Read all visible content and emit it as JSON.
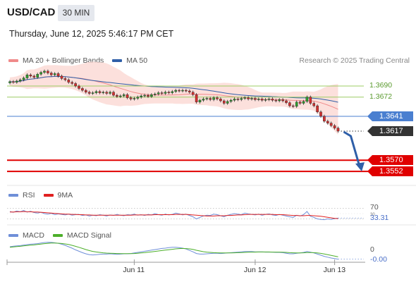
{
  "header": {
    "symbol": "USD/CAD",
    "timeframe": "30 MIN",
    "datetime": "Thursday, June 12, 2025 5:46:17 PM CET",
    "credit": "Research © 2025 Trading Central"
  },
  "legend_main": [
    {
      "label": "MA 20 + Bollinger Bands",
      "color": "#f08a8a"
    },
    {
      "label": "MA 50",
      "color": "#2f5fa8"
    }
  ],
  "legend_rsi": [
    {
      "label": "RSI",
      "color": "#6f8fd8"
    },
    {
      "label": "9MA",
      "color": "#e02020"
    }
  ],
  "legend_macd": [
    {
      "label": "MACD",
      "color": "#6f8fd8"
    },
    {
      "label": "MACD Signal",
      "color": "#4caf2a"
    }
  ],
  "colors": {
    "resistance": "#9ccc65",
    "support": "#e00000",
    "current_line": "#4a7fd0",
    "last_price_tag": "#333333",
    "arrow": "#2f5fa8",
    "bollinger_fill": "#fbd5d0",
    "candle_up": "#2e9e2e",
    "candle_down": "#d32f2f"
  },
  "chart_data": [
    {
      "type": "candlestick",
      "title": "USD/CAD 30 MIN",
      "ylim": [
        1.3535,
        1.3715
      ],
      "x_ticks": [
        {
          "label": "Jun 11",
          "index": 36
        },
        {
          "label": "Jun 12",
          "index": 71
        },
        {
          "label": "Jun 13",
          "index": 94
        }
      ],
      "levels": [
        {
          "value": 1.369,
          "label": "1.3690",
          "kind": "resistance"
        },
        {
          "value": 1.3672,
          "label": "1.3672",
          "kind": "resistance"
        },
        {
          "value": 1.3641,
          "label": "1.3641",
          "kind": "pivot"
        },
        {
          "value": 1.357,
          "label": "1.3570",
          "kind": "support"
        },
        {
          "value": 1.3552,
          "label": "1.3552",
          "kind": "support"
        }
      ],
      "last_price": {
        "value": 1.3617,
        "label": "1.3617"
      },
      "forecast_arrow": {
        "from": 1.3617,
        "to": 1.3552
      },
      "close": [
        1.3697,
        1.3696,
        1.3698,
        1.37,
        1.3703,
        1.3708,
        1.3706,
        1.3704,
        1.3709,
        1.3712,
        1.3714,
        1.3711,
        1.3708,
        1.371,
        1.3706,
        1.3702,
        1.37,
        1.3696,
        1.3694,
        1.369,
        1.3686,
        1.3683,
        1.368,
        1.3678,
        1.3679,
        1.3681,
        1.3679,
        1.368,
        1.3678,
        1.368,
        1.3675,
        1.3673,
        1.3674,
        1.3676,
        1.3671,
        1.3669,
        1.367,
        1.3672,
        1.3674,
        1.3675,
        1.3673,
        1.3676,
        1.3677,
        1.3679,
        1.3678,
        1.368,
        1.3679,
        1.3681,
        1.3683,
        1.3682,
        1.3683,
        1.3682,
        1.368,
        1.3676,
        1.3664,
        1.3667,
        1.3669,
        1.367,
        1.3668,
        1.3671,
        1.3669,
        1.3666,
        1.3662,
        1.3665,
        1.3667,
        1.3669,
        1.3668,
        1.367,
        1.3671,
        1.3669,
        1.367,
        1.3668,
        1.3669,
        1.3667,
        1.3668,
        1.3669,
        1.3667,
        1.3666,
        1.3668,
        1.3666,
        1.3663,
        1.3658,
        1.3657,
        1.3664,
        1.3662,
        1.3665,
        1.3672,
        1.3662,
        1.3658,
        1.3648,
        1.3641,
        1.3633,
        1.363,
        1.3626,
        1.3622,
        1.3617
      ]
    },
    {
      "type": "line",
      "title": "RSI",
      "ylim": [
        0,
        100
      ],
      "reference": [
        {
          "value": 70,
          "label": "70"
        },
        {
          "value": 30,
          "label": "30"
        }
      ],
      "last_value": {
        "value": 33.31,
        "label": "33.31"
      },
      "series": [
        {
          "name": "RSI",
          "values": [
            58,
            55,
            60,
            57,
            62,
            56,
            59,
            54,
            52,
            55,
            50,
            48,
            51,
            46,
            49,
            47,
            45,
            48,
            44,
            46,
            47,
            43,
            45,
            41,
            44,
            42,
            46,
            44,
            41,
            45,
            43,
            47,
            44,
            42,
            46,
            45,
            48,
            44,
            46,
            43,
            47,
            45,
            50,
            46,
            44,
            48,
            45,
            47,
            52,
            49,
            45,
            48,
            43,
            38,
            30,
            36,
            41,
            44,
            43,
            48,
            46,
            42,
            38,
            44,
            47,
            50,
            48,
            46,
            52,
            49,
            47,
            45,
            48,
            44,
            47,
            49,
            45,
            43,
            47,
            44,
            41,
            38,
            36,
            44,
            41,
            46,
            58,
            40,
            36,
            30,
            28,
            27,
            30,
            28,
            31,
            33
          ]
        },
        {
          "name": "9MA",
          "values": [
            56,
            56,
            57,
            57,
            58,
            57,
            57,
            56,
            56,
            55,
            54,
            53,
            52,
            51,
            50,
            49,
            48,
            48,
            47,
            47,
            46,
            46,
            45,
            45,
            44,
            44,
            44,
            44,
            44,
            44,
            44,
            44,
            44,
            44,
            44,
            44,
            45,
            45,
            45,
            45,
            45,
            45,
            46,
            46,
            46,
            46,
            46,
            46,
            47,
            47,
            47,
            47,
            46,
            45,
            44,
            43,
            42,
            41,
            41,
            41,
            42,
            42,
            42,
            43,
            43,
            44,
            45,
            45,
            46,
            47,
            47,
            47,
            47,
            47,
            47,
            47,
            47,
            46,
            46,
            46,
            45,
            44,
            43,
            43,
            42,
            42,
            43,
            43,
            42,
            41,
            40,
            38,
            36,
            34,
            32,
            31
          ]
        }
      ]
    },
    {
      "type": "line",
      "title": "MACD",
      "reference": [
        {
          "value": 0,
          "label": "0"
        }
      ],
      "last_value": {
        "value": -0.0,
        "label": "-0.00"
      },
      "series": [
        {
          "name": "MACD",
          "values": [
            0.0004,
            0.00044,
            0.00046,
            0.00048,
            0.00052,
            0.00055,
            0.00058,
            0.0006,
            0.00062,
            0.00066,
            0.0007,
            0.00072,
            0.00071,
            0.00068,
            0.00064,
            0.00058,
            0.0005,
            0.0004,
            0.0003,
            0.00018,
            8e-05,
            -2e-05,
            -0.0001,
            -0.00016,
            -0.00018,
            -0.00016,
            -0.00014,
            -0.00012,
            -0.00012,
            -0.0001,
            -0.00012,
            -0.00014,
            -0.00012,
            -0.0001,
            -0.0001,
            -8e-05,
            -4e-05,
            0.0,
            4e-05,
            8e-05,
            0.00012,
            0.00016,
            0.0002,
            0.00024,
            0.00028,
            0.0003,
            0.00034,
            0.00036,
            0.00036,
            0.00034,
            0.0003,
            0.00024,
            0.00014,
            4e-05,
            -8e-05,
            -0.00012,
            -0.00012,
            -0.0001,
            -8e-05,
            -6e-05,
            -6e-05,
            -8e-05,
            -6e-05,
            -4e-05,
            -2e-05,
            0.0,
            2e-05,
            4e-05,
            6e-05,
            6e-05,
            6e-05,
            4e-05,
            4e-05,
            4e-05,
            2e-05,
            2e-05,
            2e-05,
            0.0,
            0.0,
            -2e-05,
            -6e-05,
            -0.0001,
            -0.0001,
            -6e-05,
            -4e-05,
            0.0,
            6e-05,
            2e-05,
            -4e-05,
            -0.00012,
            -0.0002,
            -0.00028,
            -0.00034,
            -0.0004,
            -0.00044,
            -0.00048
          ]
        },
        {
          "name": "MACD Signal",
          "values": [
            0.00036,
            0.00039,
            0.00041,
            0.00043,
            0.00046,
            0.00049,
            0.00051,
            0.00053,
            0.00056,
            0.00059,
            0.00062,
            0.00064,
            0.00066,
            0.00066,
            0.00065,
            0.00063,
            0.0006,
            0.00056,
            0.0005,
            0.00043,
            0.00036,
            0.00028,
            0.0002,
            0.00013,
            7e-05,
            3e-05,
            0.0,
            -3e-05,
            -5e-05,
            -6e-05,
            -7e-05,
            -8e-05,
            -9e-05,
            -9e-05,
            -9e-05,
            -9e-05,
            -8e-05,
            -6e-05,
            -4e-05,
            -2e-05,
            1e-05,
            4e-05,
            7e-05,
            0.0001,
            0.00013,
            0.00016,
            0.00019,
            0.00022,
            0.00025,
            0.00027,
            0.00028,
            0.00027,
            0.00025,
            0.00021,
            0.00015,
            0.0001,
            5e-05,
            2e-05,
            0.0,
            -2e-05,
            -3e-05,
            -4e-05,
            -4e-05,
            -4e-05,
            -4e-05,
            -3e-05,
            -2e-05,
            -1e-05,
            0.0,
            1e-05,
            2e-05,
            2e-05,
            3e-05,
            3e-05,
            3e-05,
            3e-05,
            2e-05,
            2e-05,
            2e-05,
            1e-05,
            0.0,
            -2e-05,
            -3e-05,
            -4e-05,
            -4e-05,
            -3e-05,
            -1e-05,
            -1e-05,
            -2e-05,
            -4e-05,
            -7e-05,
            -0.00011,
            -0.00016,
            -0.00021,
            -0.00026,
            -0.00031
          ]
        }
      ]
    }
  ]
}
